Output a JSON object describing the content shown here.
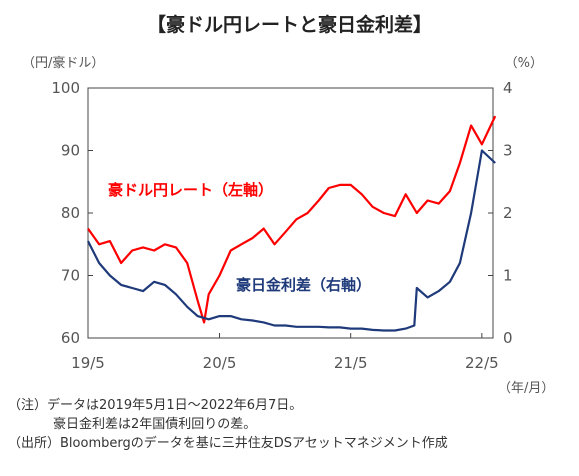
{
  "chart_data": {
    "type": "line",
    "title": "【豪ドル円レートと豪日金利差】",
    "left_axis_unit": "（円/豪ドル）",
    "right_axis_unit": "（%）",
    "x_axis_unit": "（年/月）",
    "left_ylim": [
      60,
      100
    ],
    "left_yticks": [
      "60",
      "70",
      "80",
      "90",
      "100"
    ],
    "right_ylim": [
      0,
      4
    ],
    "right_yticks": [
      "0",
      "1",
      "2",
      "3",
      "4"
    ],
    "xlim": [
      "2019-05",
      "2022-06"
    ],
    "xticks": [
      "19/5",
      "20/5",
      "21/5",
      "22/5"
    ],
    "grid": false,
    "series": [
      {
        "name": "豪ドル円レート（左軸）",
        "axis": "left",
        "color": "#ff0000",
        "x": [
          "2019-05-01",
          "2019-06-01",
          "2019-07-01",
          "2019-08-01",
          "2019-09-01",
          "2019-10-01",
          "2019-11-01",
          "2019-12-01",
          "2020-01-01",
          "2020-02-01",
          "2020-03-01",
          "2020-03-19",
          "2020-04-01",
          "2020-05-01",
          "2020-06-01",
          "2020-07-01",
          "2020-08-01",
          "2020-09-01",
          "2020-10-01",
          "2020-11-01",
          "2020-12-01",
          "2021-01-01",
          "2021-02-01",
          "2021-03-01",
          "2021-04-01",
          "2021-05-01",
          "2021-06-01",
          "2021-07-01",
          "2021-08-01",
          "2021-09-01",
          "2021-10-01",
          "2021-11-01",
          "2021-12-01",
          "2022-01-01",
          "2022-02-01",
          "2022-03-01",
          "2022-04-01",
          "2022-05-01",
          "2022-06-07"
        ],
        "values": [
          77.5,
          75.0,
          75.5,
          72.0,
          74.0,
          74.5,
          74.0,
          75.0,
          74.5,
          72.0,
          66.0,
          62.5,
          67.0,
          70.0,
          74.0,
          75.0,
          76.0,
          77.5,
          75.0,
          77.0,
          79.0,
          80.0,
          82.0,
          84.0,
          84.5,
          84.5,
          83.0,
          81.0,
          80.0,
          79.5,
          83.0,
          80.0,
          82.0,
          81.5,
          83.5,
          88.0,
          94.0,
          91.0,
          95.5
        ]
      },
      {
        "name": "豪日金利差（右軸）",
        "axis": "right",
        "color": "#1f3a7a",
        "x": [
          "2019-05-01",
          "2019-06-01",
          "2019-07-01",
          "2019-08-01",
          "2019-09-01",
          "2019-10-01",
          "2019-11-01",
          "2019-12-01",
          "2020-01-01",
          "2020-02-01",
          "2020-03-01",
          "2020-04-01",
          "2020-05-01",
          "2020-06-01",
          "2020-07-01",
          "2020-08-01",
          "2020-09-01",
          "2020-10-01",
          "2020-11-01",
          "2020-12-01",
          "2021-01-01",
          "2021-02-01",
          "2021-03-01",
          "2021-04-01",
          "2021-05-01",
          "2021-06-01",
          "2021-07-01",
          "2021-08-01",
          "2021-09-01",
          "2021-10-01",
          "2021-10-25",
          "2021-11-01",
          "2021-12-01",
          "2022-01-01",
          "2022-02-01",
          "2022-03-01",
          "2022-04-01",
          "2022-05-01",
          "2022-06-07"
        ],
        "values": [
          1.55,
          1.2,
          1.0,
          0.85,
          0.8,
          0.75,
          0.9,
          0.85,
          0.7,
          0.5,
          0.35,
          0.3,
          0.35,
          0.35,
          0.3,
          0.28,
          0.25,
          0.2,
          0.2,
          0.18,
          0.18,
          0.18,
          0.17,
          0.17,
          0.15,
          0.15,
          0.13,
          0.12,
          0.12,
          0.15,
          0.2,
          0.8,
          0.65,
          0.75,
          0.9,
          1.2,
          2.0,
          3.0,
          2.8
        ]
      }
    ]
  },
  "notes": {
    "line1": "（注）データは2019年5月1日～2022年6月7日。",
    "line2": "豪日金利差は2年国債利回りの差。",
    "line3": "（出所）Bloombergのデータを基に三井住友DSアセットマネジメント作成"
  }
}
